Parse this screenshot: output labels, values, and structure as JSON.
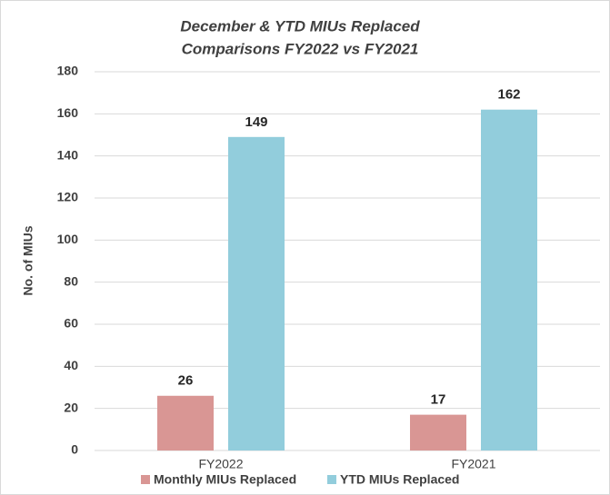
{
  "chart_data": {
    "type": "bar",
    "title": [
      "December & YTD MIUs Replaced",
      "Comparisons FY2022 vs FY2021"
    ],
    "y_label": "No. of MIUs",
    "categories": [
      "FY2022",
      "FY2021"
    ],
    "series": [
      {
        "name": "Monthly MIUs Replaced",
        "color": "#d99694",
        "values": [
          26,
          17
        ]
      },
      {
        "name": "YTD MIUs Replaced",
        "color": "#92cddc",
        "values": [
          149,
          162
        ]
      }
    ],
    "ylim": [
      0,
      180
    ],
    "yticks": [
      0,
      20,
      40,
      60,
      80,
      100,
      120,
      140,
      160,
      180
    ],
    "grid": true,
    "legend": "bottom"
  }
}
